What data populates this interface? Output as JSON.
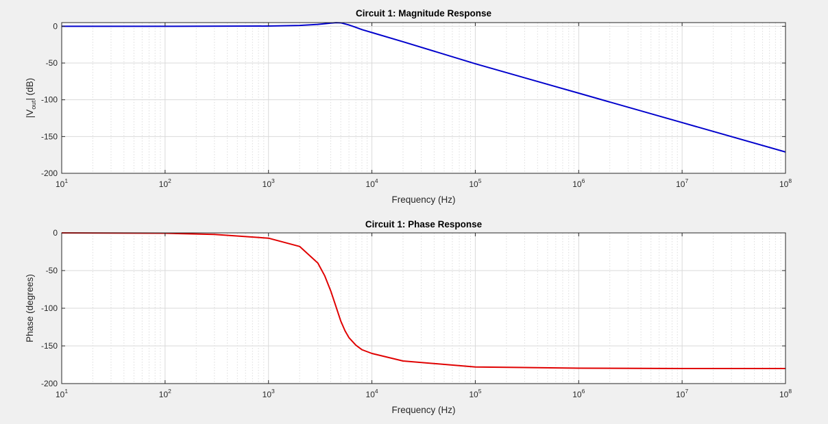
{
  "chart_data": [
    {
      "type": "line",
      "title": "Circuit 1: Magnitude Response",
      "xlabel": "Frequency (Hz)",
      "ylabel": {
        "pre": "|V",
        "sub": "out",
        "post": "| (dB)"
      },
      "xscale": "log",
      "xlim": [
        10,
        100000000
      ],
      "ylim": [
        -200,
        5
      ],
      "yticks": [
        0,
        -50,
        -100,
        -150,
        -200
      ],
      "ytick_labels": [
        "0",
        "-50",
        "-100",
        "-150",
        "-200"
      ],
      "xtick_labels": [
        {
          "base": "10",
          "exp": "1"
        },
        {
          "base": "10",
          "exp": "2"
        },
        {
          "base": "10",
          "exp": "3"
        },
        {
          "base": "10",
          "exp": "4"
        },
        {
          "base": "10",
          "exp": "5"
        },
        {
          "base": "10",
          "exp": "6"
        },
        {
          "base": "10",
          "exp": "7"
        },
        {
          "base": "10",
          "exp": "8"
        }
      ],
      "grid": true,
      "color": "#0000cc",
      "series": [
        {
          "x": [
            10,
            100,
            1000,
            2000,
            3000,
            4000,
            4500,
            5000,
            5500,
            6000,
            7000,
            8000,
            10000,
            20000,
            100000,
            1000000,
            10000000,
            100000000
          ],
          "y": [
            0,
            0,
            0.3,
            1.2,
            2.5,
            4.3,
            4.9,
            4.7,
            3.2,
            1.8,
            -1.5,
            -4.5,
            -8.5,
            -21,
            -51,
            -91,
            -131,
            -171
          ]
        }
      ]
    },
    {
      "type": "line",
      "title": "Circuit 1: Phase Response",
      "xlabel": "Frequency (Hz)",
      "ylabel": "Phase (degrees)",
      "xscale": "log",
      "xlim": [
        10,
        100000000
      ],
      "ylim": [
        -200,
        0
      ],
      "yticks": [
        0,
        -50,
        -100,
        -150,
        -200
      ],
      "ytick_labels": [
        "0",
        "-50",
        "-100",
        "-150",
        "-200"
      ],
      "xtick_labels": [
        {
          "base": "10",
          "exp": "1"
        },
        {
          "base": "10",
          "exp": "2"
        },
        {
          "base": "10",
          "exp": "3"
        },
        {
          "base": "10",
          "exp": "4"
        },
        {
          "base": "10",
          "exp": "5"
        },
        {
          "base": "10",
          "exp": "6"
        },
        {
          "base": "10",
          "exp": "7"
        },
        {
          "base": "10",
          "exp": "8"
        }
      ],
      "grid": true,
      "color": "#e00000",
      "series": [
        {
          "x": [
            10,
            100,
            300,
            1000,
            2000,
            3000,
            3500,
            4000,
            4500,
            5000,
            5500,
            6000,
            7000,
            8000,
            10000,
            20000,
            100000,
            1000000,
            10000000,
            100000000
          ],
          "y": [
            0,
            -0.5,
            -2,
            -7,
            -18,
            -40,
            -57,
            -77,
            -98,
            -117,
            -130,
            -139,
            -149,
            -155,
            -160,
            -170,
            -178,
            -179.5,
            -180,
            -180
          ]
        }
      ]
    }
  ]
}
